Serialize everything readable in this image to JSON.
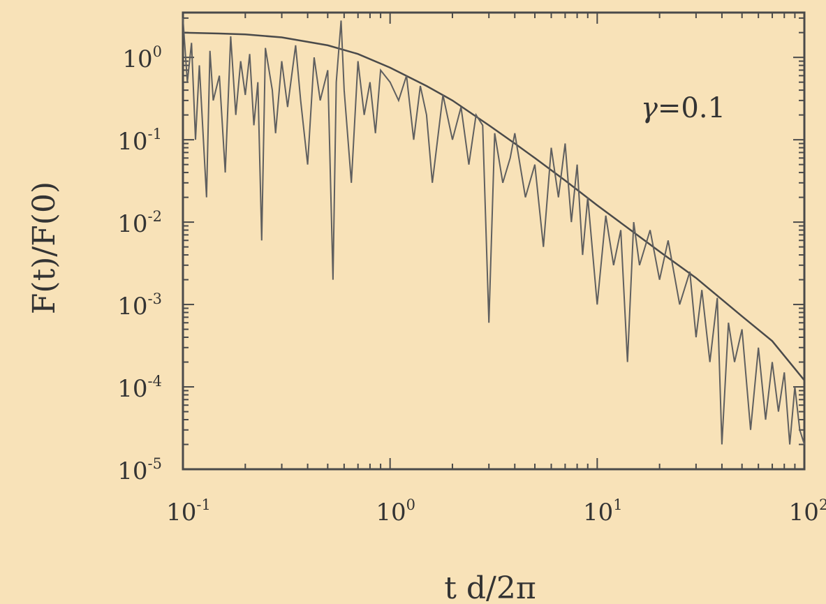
{
  "chart_data": {
    "type": "line",
    "xlabel": "t d/2π",
    "ylabel": "F(t)/F(0)",
    "xscale": "log",
    "yscale": "log",
    "xlim": [
      0.1,
      100
    ],
    "ylim": [
      1e-05,
      3.5
    ],
    "x_ticks": [
      {
        "base": "10",
        "exp": "-1",
        "value": 0.1
      },
      {
        "base": "10",
        "exp": "0",
        "value": 1
      },
      {
        "base": "10",
        "exp": "1",
        "value": 10
      },
      {
        "base": "10",
        "exp": "2",
        "value": 100
      }
    ],
    "y_ticks": [
      {
        "base": "10",
        "exp": "0",
        "value": 1
      },
      {
        "base": "10",
        "exp": "-1",
        "value": 0.1
      },
      {
        "base": "10",
        "exp": "-2",
        "value": 0.01
      },
      {
        "base": "10",
        "exp": "-3",
        "value": 0.001
      },
      {
        "base": "10",
        "exp": "-4",
        "value": 0.0001
      },
      {
        "base": "10",
        "exp": "-5",
        "value": 1e-05
      }
    ],
    "annotation": {
      "symbol": "γ",
      "text": "=0.1"
    },
    "grid": false,
    "series": [
      {
        "style": "smooth",
        "x": [
          0.1,
          0.15,
          0.2,
          0.3,
          0.5,
          0.7,
          1.0,
          1.5,
          2,
          3,
          4,
          5,
          7,
          10,
          15,
          20,
          30,
          50,
          70,
          100
        ],
        "y": [
          2.0,
          1.95,
          1.9,
          1.75,
          1.4,
          1.1,
          0.75,
          0.45,
          0.3,
          0.15,
          0.09,
          0.06,
          0.032,
          0.016,
          0.0075,
          0.0044,
          0.0021,
          0.00072,
          0.00036,
          0.00012
        ]
      },
      {
        "style": "noisy",
        "x": [
          0.1,
          0.105,
          0.11,
          0.115,
          0.12,
          0.13,
          0.135,
          0.14,
          0.15,
          0.16,
          0.17,
          0.18,
          0.19,
          0.2,
          0.21,
          0.22,
          0.23,
          0.24,
          0.25,
          0.27,
          0.28,
          0.3,
          0.32,
          0.35,
          0.37,
          0.4,
          0.43,
          0.46,
          0.5,
          0.53,
          0.55,
          0.58,
          0.6,
          0.65,
          0.7,
          0.75,
          0.8,
          0.85,
          0.9,
          1.0,
          1.1,
          1.2,
          1.3,
          1.4,
          1.5,
          1.6,
          1.8,
          2.0,
          2.2,
          2.4,
          2.6,
          2.8,
          3.0,
          3.2,
          3.5,
          3.8,
          4.0,
          4.5,
          5.0,
          5.5,
          6.0,
          6.5,
          7.0,
          7.5,
          8.0,
          8.5,
          9.0,
          10,
          11,
          12,
          13,
          14,
          15,
          16,
          18,
          20,
          22,
          25,
          28,
          30,
          32,
          35,
          38,
          40,
          43,
          46,
          50,
          55,
          60,
          65,
          70,
          75,
          80,
          85,
          90,
          95,
          100
        ],
        "y": [
          3.0,
          0.5,
          1.5,
          0.1,
          0.8,
          0.02,
          1.2,
          0.3,
          0.6,
          0.04,
          1.8,
          0.2,
          0.9,
          0.35,
          1.1,
          0.15,
          0.5,
          0.006,
          1.3,
          0.4,
          0.12,
          0.9,
          0.25,
          1.4,
          0.3,
          0.05,
          1.0,
          0.3,
          0.7,
          0.002,
          0.5,
          2.8,
          0.4,
          0.03,
          0.9,
          0.2,
          0.5,
          0.12,
          0.7,
          0.5,
          0.3,
          0.6,
          0.1,
          0.45,
          0.2,
          0.03,
          0.35,
          0.1,
          0.25,
          0.05,
          0.2,
          0.15,
          0.0006,
          0.12,
          0.03,
          0.06,
          0.12,
          0.02,
          0.05,
          0.005,
          0.08,
          0.02,
          0.09,
          0.01,
          0.05,
          0.004,
          0.02,
          0.001,
          0.012,
          0.003,
          0.008,
          0.0002,
          0.01,
          0.003,
          0.008,
          0.002,
          0.006,
          0.001,
          0.0025,
          0.0004,
          0.0015,
          0.0002,
          0.0012,
          2e-05,
          0.0006,
          0.0002,
          0.0005,
          3e-05,
          0.0003,
          4e-05,
          0.0002,
          5e-05,
          0.00015,
          2e-05,
          0.0001,
          3e-05,
          2e-05
        ]
      }
    ],
    "colors": {
      "background": "#f8e2b8",
      "frame": "#4a4a4a",
      "smooth_line": "#4a4a4a",
      "noisy_line": "#5f5f5f",
      "text": "#333333"
    }
  }
}
